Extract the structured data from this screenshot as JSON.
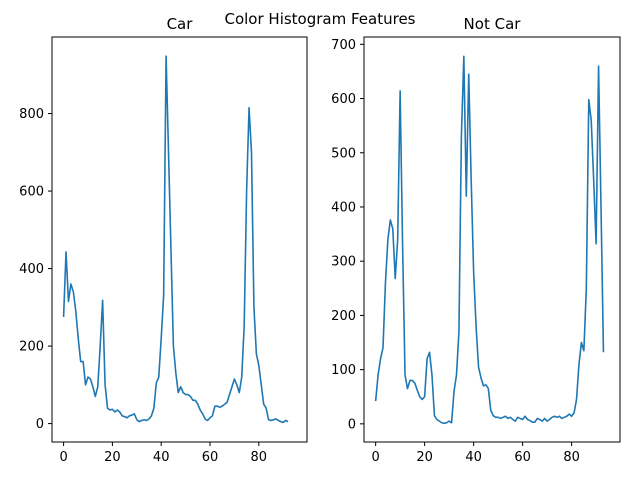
{
  "figure": {
    "suptitle": "Color Histogram Features",
    "line_color": "#1f77b4"
  },
  "chart_data": [
    {
      "type": "line",
      "title": "Car",
      "xlabel": "",
      "ylabel": "",
      "xlim": [
        -4.75,
        99.75
      ],
      "ylim": [
        -47.5,
        997.5
      ],
      "xticks": [
        0,
        20,
        40,
        60,
        80
      ],
      "yticks": [
        0,
        200,
        400,
        600,
        800
      ],
      "grid": false,
      "series": [
        {
          "values": [
            275,
            443,
            315,
            360,
            340,
            290,
            220,
            160,
            160,
            100,
            120,
            115,
            95,
            70,
            95,
            200,
            318,
            100,
            40,
            35,
            37,
            30,
            35,
            30,
            20,
            18,
            15,
            20,
            22,
            25,
            10,
            5,
            8,
            10,
            8,
            12,
            20,
            40,
            105,
            120,
            220,
            330,
            948,
            700,
            450,
            200,
            130,
            80,
            95,
            80,
            75,
            75,
            70,
            60,
            60,
            50,
            35,
            25,
            12,
            8,
            15,
            20,
            45,
            45,
            42,
            45,
            50,
            55,
            75,
            95,
            115,
            100,
            80,
            120,
            250,
            600,
            815,
            700,
            300,
            180,
            150,
            100,
            50,
            40,
            10,
            8,
            10,
            12,
            8,
            5,
            3,
            8,
            5
          ]
        }
      ]
    },
    {
      "type": "line",
      "title": "Not Car",
      "xlabel": "",
      "ylabel": "",
      "xlim": [
        -4.75,
        99.75
      ],
      "ylim": [
        -33.5,
        713.5
      ],
      "xticks": [
        0,
        20,
        40,
        60,
        80
      ],
      "yticks": [
        0,
        100,
        200,
        300,
        400,
        500,
        600,
        700
      ],
      "grid": false,
      "series": [
        {
          "values": [
            42,
            90,
            120,
            140,
            260,
            340,
            376,
            360,
            268,
            340,
            614,
            330,
            90,
            65,
            80,
            80,
            75,
            62,
            50,
            45,
            50,
            120,
            132,
            90,
            15,
            8,
            5,
            2,
            1,
            2,
            5,
            2,
            60,
            90,
            170,
            530,
            678,
            420,
            645,
            450,
            280,
            180,
            105,
            85,
            70,
            72,
            65,
            25,
            15,
            12,
            12,
            10,
            12,
            14,
            10,
            12,
            8,
            5,
            12,
            10,
            8,
            14,
            8,
            6,
            3,
            3,
            10,
            8,
            5,
            10,
            5,
            8,
            12,
            14,
            12,
            14,
            10,
            12,
            14,
            18,
            14,
            20,
            45,
            110,
            150,
            135,
            250,
            598,
            560,
            450,
            332,
            660,
            400,
            132
          ]
        }
      ]
    }
  ]
}
